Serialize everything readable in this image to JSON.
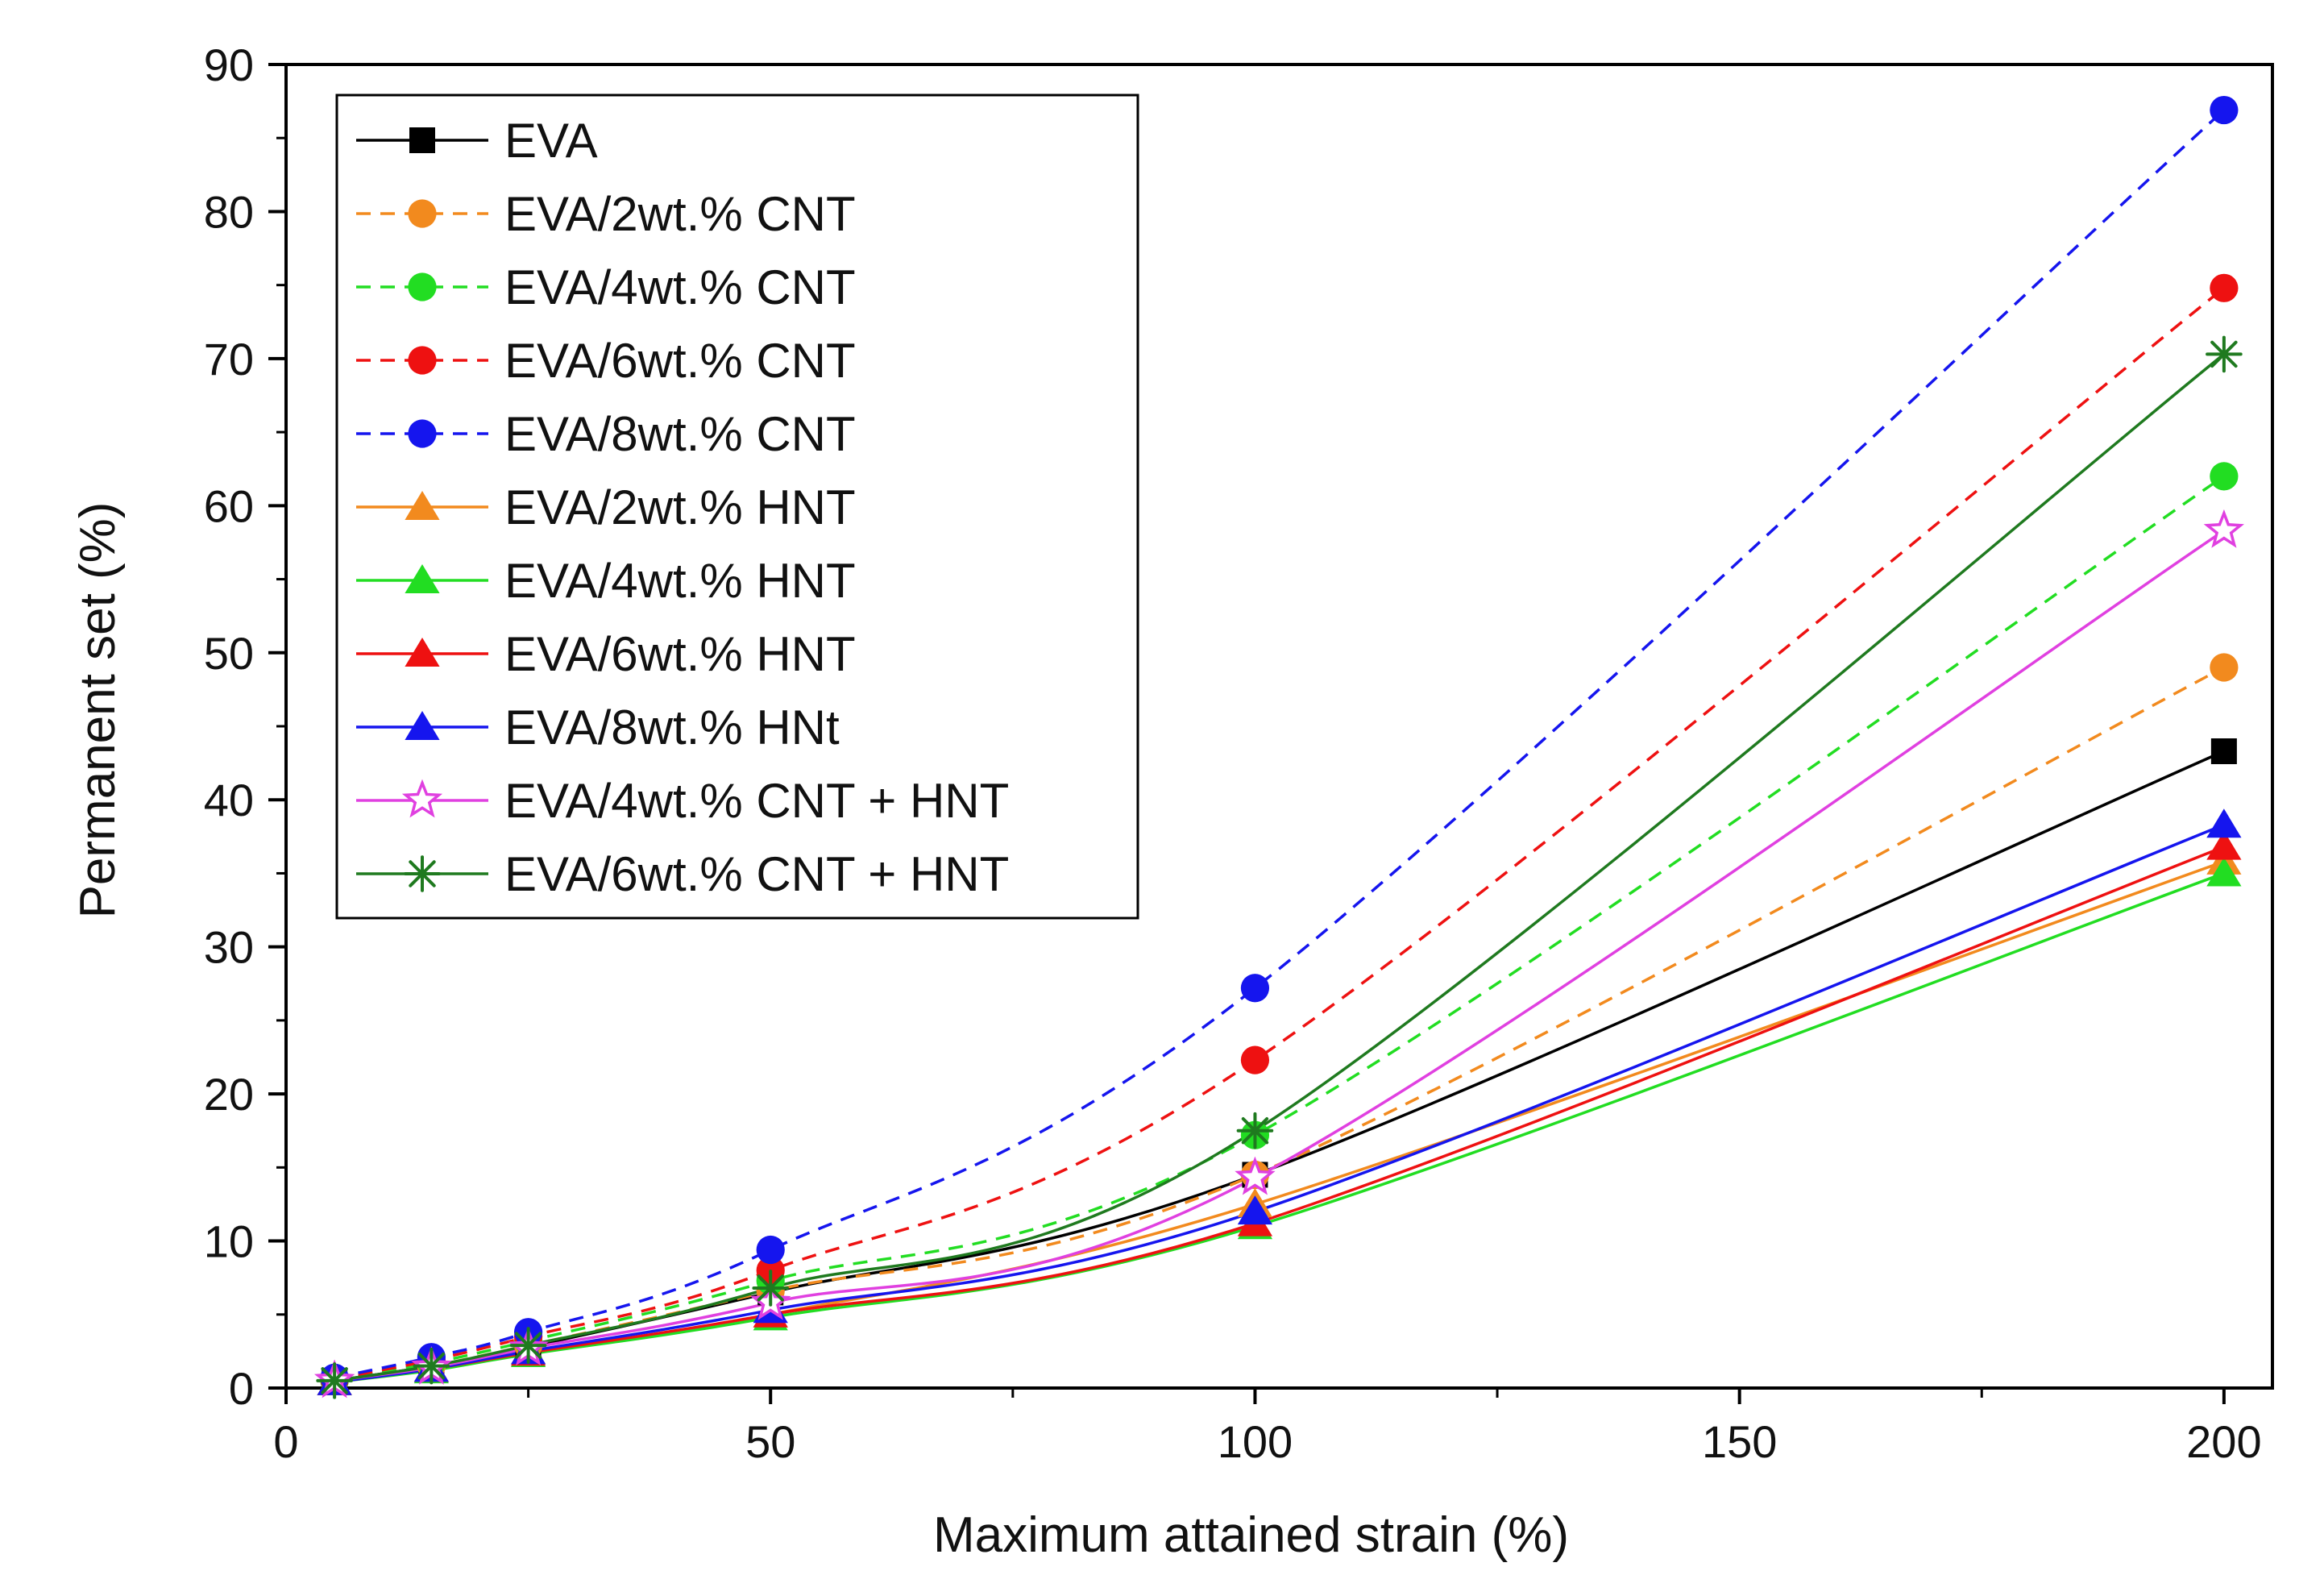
{
  "chart_data": {
    "type": "line",
    "title": "",
    "xlabel": "Maximum attained strain (%)",
    "ylabel": "Permanent set  (%)",
    "xlim": [
      0,
      205
    ],
    "ylim": [
      0,
      90
    ],
    "x_ticks": [
      0,
      50,
      100,
      150,
      200
    ],
    "y_ticks": [
      0,
      10,
      20,
      30,
      40,
      50,
      60,
      70,
      80,
      90
    ],
    "grid": false,
    "legend_position": "top-left",
    "x": [
      5,
      15,
      25,
      50,
      100,
      200
    ],
    "series": [
      {
        "name": "EVA",
        "color": "#000000",
        "marker": "square",
        "dash": "solid",
        "values": [
          0.5,
          1.5,
          2.8,
          6.5,
          14.5,
          43.3
        ]
      },
      {
        "name": "EVA/2wt.% CNT",
        "color": "#f28a1e",
        "marker": "circle",
        "dash": "dashed",
        "values": [
          0.5,
          1.5,
          2.9,
          6.6,
          14.5,
          49.0
        ]
      },
      {
        "name": "EVA/4wt.% CNT",
        "color": "#22dd22",
        "marker": "circle",
        "dash": "dashed",
        "values": [
          0.5,
          1.7,
          3.2,
          7.3,
          17.2,
          62.0
        ]
      },
      {
        "name": "EVA/6wt.% CNT",
        "color": "#ee1111",
        "marker": "circle",
        "dash": "dashed",
        "values": [
          0.6,
          1.9,
          3.5,
          8.0,
          22.3,
          74.8
        ]
      },
      {
        "name": "EVA/8wt.% CNT",
        "color": "#1515ee",
        "marker": "circle",
        "dash": "dashed",
        "values": [
          0.7,
          2.1,
          3.8,
          9.4,
          27.2,
          86.9
        ]
      },
      {
        "name": "EVA/2wt.% HNT",
        "color": "#f28a1e",
        "marker": "triangle",
        "dash": "solid",
        "values": [
          0.4,
          1.3,
          2.5,
          5.0,
          12.5,
          35.8
        ]
      },
      {
        "name": "EVA/4wt.% HNT",
        "color": "#22dd22",
        "marker": "triangle",
        "dash": "solid",
        "values": [
          0.4,
          1.2,
          2.3,
          4.8,
          11.0,
          35.0
        ]
      },
      {
        "name": "EVA/6wt.% HNT",
        "color": "#ee1111",
        "marker": "triangle",
        "dash": "solid",
        "values": [
          0.4,
          1.3,
          2.4,
          5.0,
          11.2,
          36.8
        ]
      },
      {
        "name": "EVA/8wt.% HNt",
        "color": "#1515ee",
        "marker": "triangle",
        "dash": "solid",
        "values": [
          0.4,
          1.3,
          2.5,
          5.3,
          12.0,
          38.3
        ]
      },
      {
        "name": "EVA/4wt.% CNT + HNT",
        "color": "#e040e0",
        "marker": "star",
        "dash": "solid",
        "values": [
          0.5,
          1.4,
          2.7,
          5.8,
          14.3,
          58.3
        ]
      },
      {
        "name": "EVA/6wt.% CNT + HNT",
        "color": "#1f7a1f",
        "marker": "asterisk",
        "dash": "solid",
        "values": [
          0.5,
          1.5,
          2.9,
          6.8,
          17.5,
          70.3
        ]
      }
    ]
  }
}
